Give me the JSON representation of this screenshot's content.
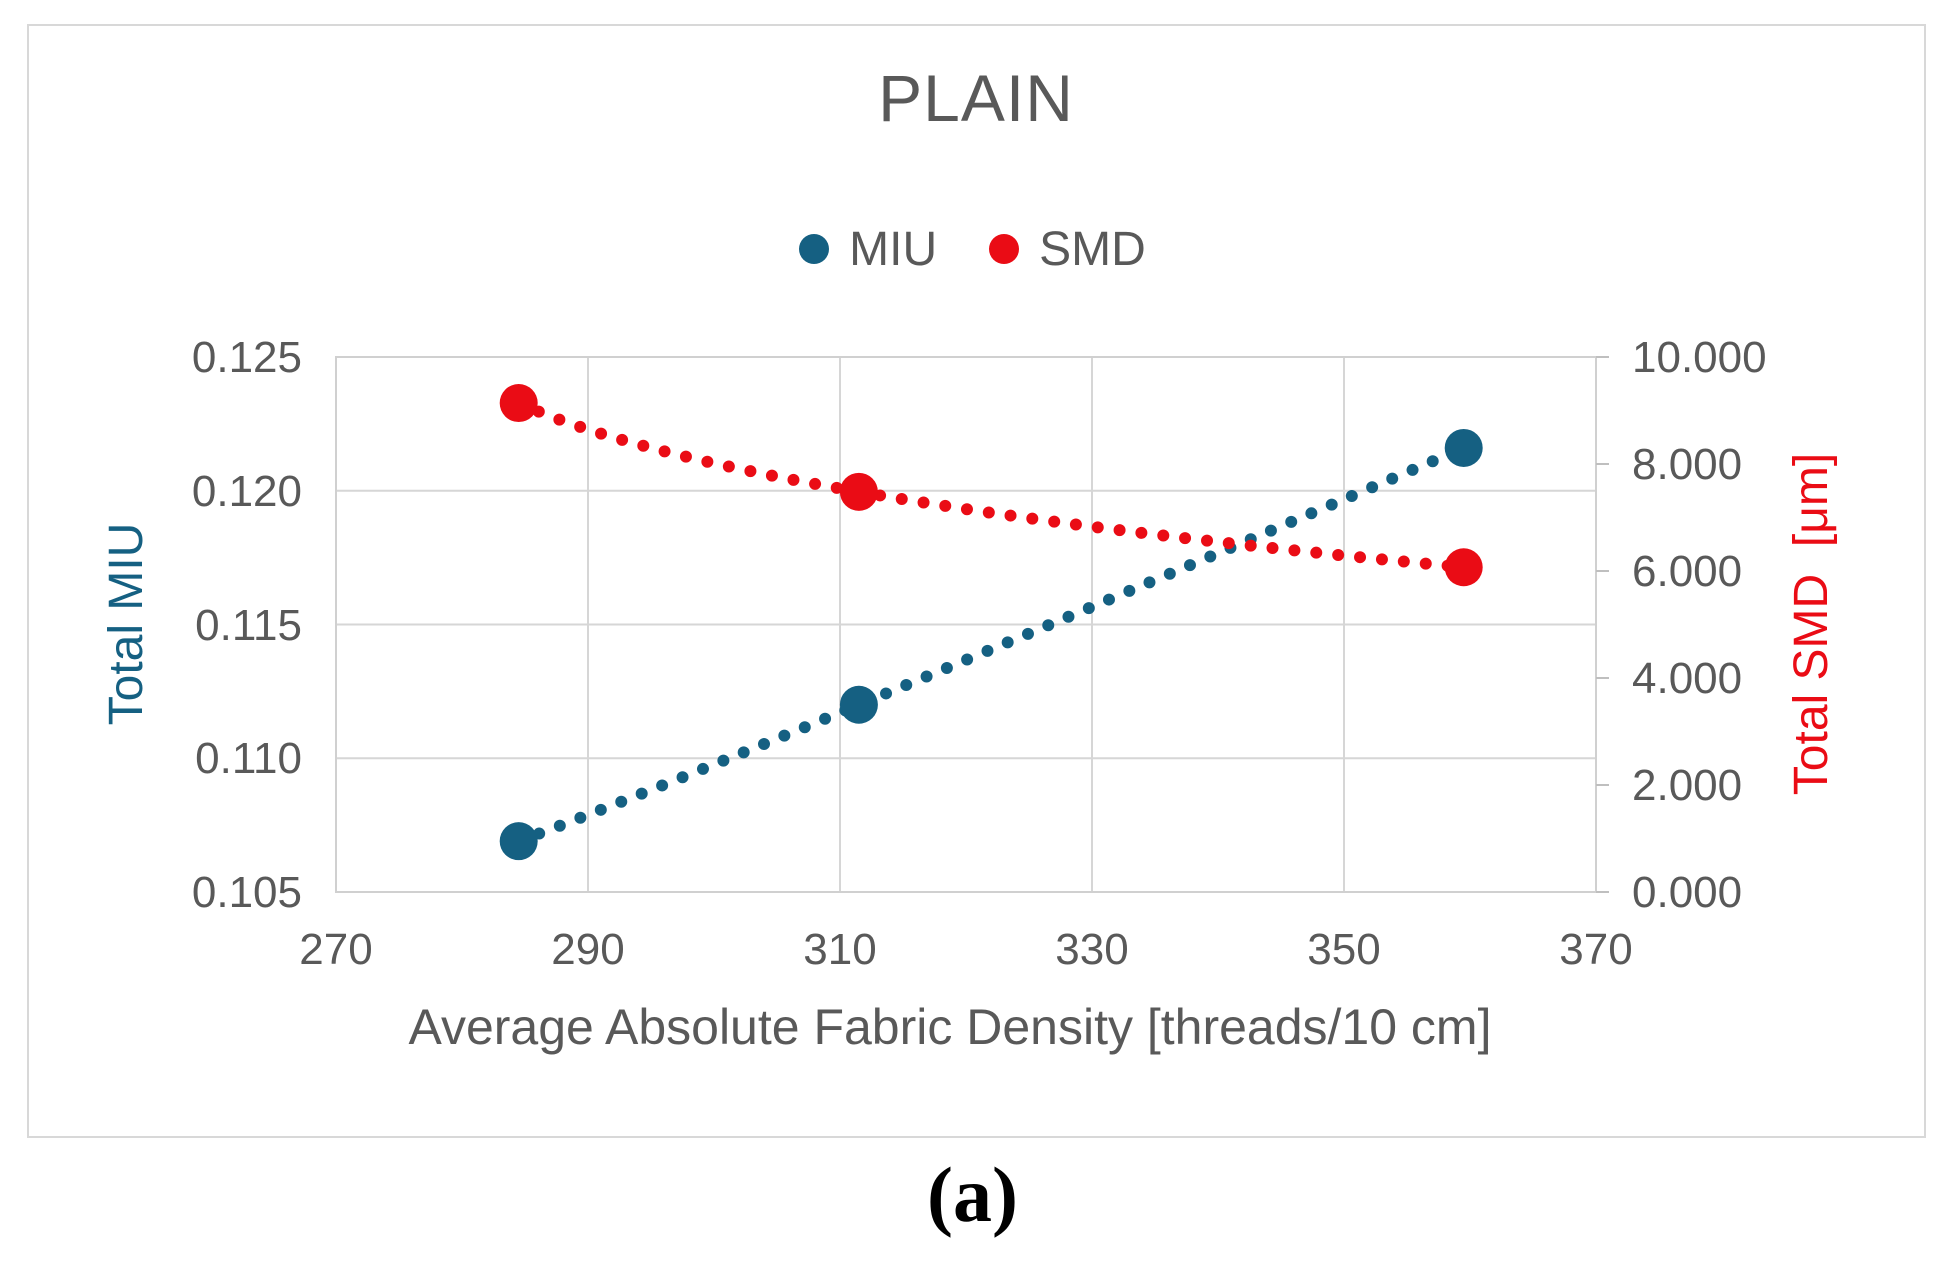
{
  "figure": {
    "panel_label": "(a)"
  },
  "colors": {
    "miu_blue": "#156082",
    "smd_red": "#ea0c15",
    "text_gray": "#595959",
    "gridline_gray": "#d6d6d6",
    "axis_tick_gray": "#bfbfbf"
  },
  "chart_data": {
    "type": "scatter",
    "title": "PLAIN",
    "xlabel": "Average Absolute Fabric Density [threads/10 cm]",
    "ylabel_left": "Total MIU",
    "ylabel_right": "Total SMD  [μm]",
    "legend_position": "top",
    "grid": true,
    "legend": [
      {
        "label": "MIU",
        "color": "#156082"
      },
      {
        "label": "SMD",
        "color": "#ea0c15"
      }
    ],
    "xlim": [
      270,
      370
    ],
    "ylim_left": [
      0.105,
      0.125
    ],
    "ylim_right": [
      0,
      10
    ],
    "x_tick_labels": [
      "270",
      "290",
      "310",
      "330",
      "350",
      "370"
    ],
    "y_left_tick_labels": [
      "0.125",
      "0.120",
      "0.115",
      "0.110",
      "0.105"
    ],
    "y_right_tick_labels": [
      "10.000",
      "8.000",
      "6.000",
      "4.000",
      "2.000",
      "0.000"
    ],
    "series": [
      {
        "name": "MIU",
        "axis": "left",
        "color": "#156082",
        "marker": "circle",
        "line_style": "dotted",
        "x": [
          284.5,
          311.5,
          359.5
        ],
        "y": [
          0.1069,
          0.112,
          0.1216
        ]
      },
      {
        "name": "SMD",
        "axis": "right",
        "color": "#ea0c15",
        "marker": "circle",
        "line_style": "dotted",
        "x": [
          284.5,
          311.5,
          359.5
        ],
        "y": [
          9.14,
          7.48,
          6.07
        ]
      }
    ]
  }
}
